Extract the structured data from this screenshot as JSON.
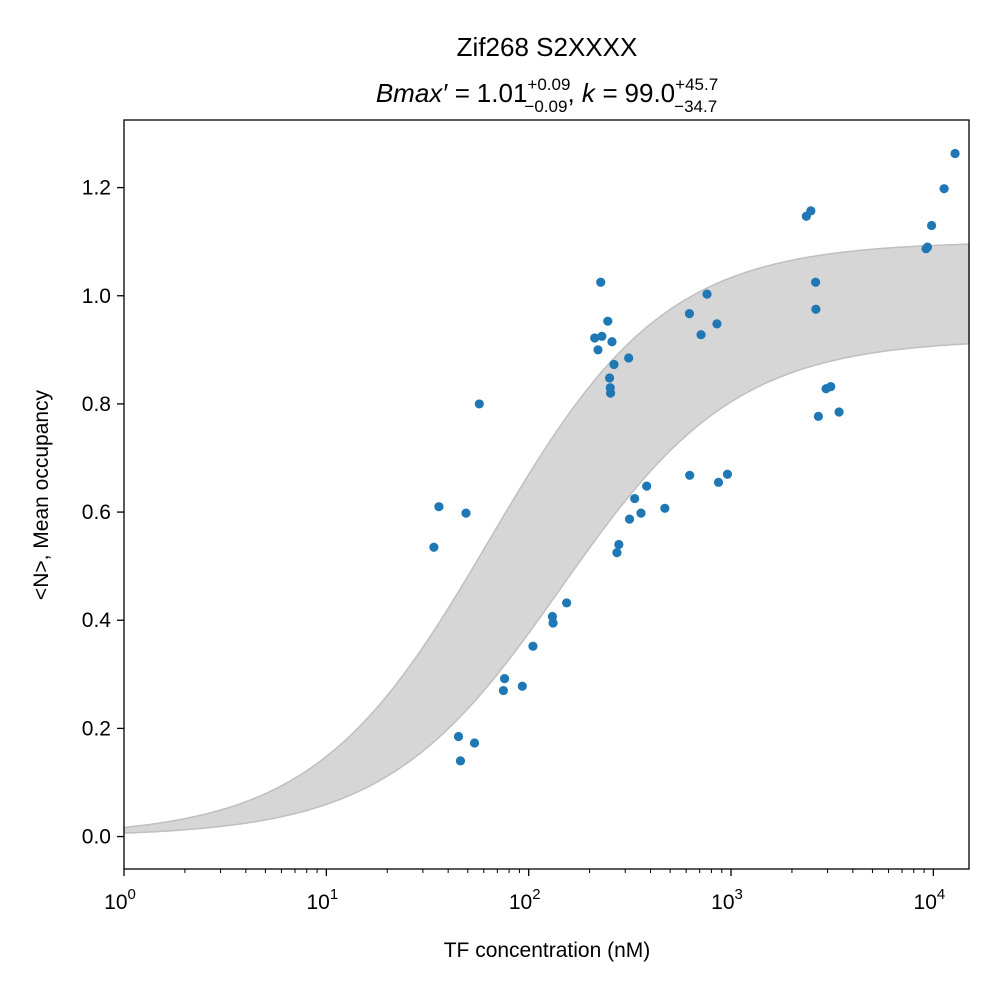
{
  "chart_data": {
    "type": "scatter",
    "title": "Zif268 S2XXXX",
    "subtitle": {
      "bmax_symbol": "Bmax′ = ",
      "bmax_value": "1.01",
      "bmax_up": "+0.09",
      "bmax_down": "−0.09",
      "separator": ", ",
      "k_symbol": "k = ",
      "k_value": "99.0",
      "k_up": "+45.7",
      "k_down": "−34.7"
    },
    "xlabel": "TF concentration (nM)",
    "ylabel": "<N>, Mean occupancy",
    "xscale": "log",
    "xlim": [
      1,
      15000
    ],
    "ylim": [
      -0.06,
      1.325
    ],
    "x_ticks": [
      {
        "value": 1,
        "base": "10",
        "exp": "0"
      },
      {
        "value": 10,
        "base": "10",
        "exp": "1"
      },
      {
        "value": 100,
        "base": "10",
        "exp": "2"
      },
      {
        "value": 1000,
        "base": "10",
        "exp": "3"
      },
      {
        "value": 10000,
        "base": "10",
        "exp": "4"
      }
    ],
    "y_ticks": [
      {
        "value": 0.0,
        "label": "0.0"
      },
      {
        "value": 0.2,
        "label": "0.2"
      },
      {
        "value": 0.4,
        "label": "0.4"
      },
      {
        "value": 0.6,
        "label": "0.6"
      },
      {
        "value": 0.8,
        "label": "0.8"
      },
      {
        "value": 1.0,
        "label": "1.0"
      },
      {
        "value": 1.2,
        "label": "1.2"
      }
    ],
    "grid": false,
    "band": {
      "bmax_low": 0.92,
      "bmax_high": 1.1,
      "k_low": 64.3,
      "k_high": 144.7,
      "color": "#d6d6d6",
      "edge_color": "#bfbfbf"
    },
    "point_color": "#1f77b4",
    "points": [
      {
        "x": 34,
        "y": 0.535
      },
      {
        "x": 36,
        "y": 0.61
      },
      {
        "x": 45,
        "y": 0.185
      },
      {
        "x": 46,
        "y": 0.14
      },
      {
        "x": 49,
        "y": 0.598
      },
      {
        "x": 54,
        "y": 0.173
      },
      {
        "x": 57,
        "y": 0.8
      },
      {
        "x": 75,
        "y": 0.27
      },
      {
        "x": 76,
        "y": 0.292
      },
      {
        "x": 93,
        "y": 0.278
      },
      {
        "x": 105,
        "y": 0.352
      },
      {
        "x": 131,
        "y": 0.407
      },
      {
        "x": 132,
        "y": 0.395
      },
      {
        "x": 154,
        "y": 0.432
      },
      {
        "x": 212,
        "y": 0.922
      },
      {
        "x": 220,
        "y": 0.9
      },
      {
        "x": 227,
        "y": 1.025
      },
      {
        "x": 230,
        "y": 0.925
      },
      {
        "x": 246,
        "y": 0.953
      },
      {
        "x": 251,
        "y": 0.848
      },
      {
        "x": 253,
        "y": 0.83
      },
      {
        "x": 254,
        "y": 0.82
      },
      {
        "x": 258,
        "y": 0.915
      },
      {
        "x": 264,
        "y": 0.873
      },
      {
        "x": 273,
        "y": 0.525
      },
      {
        "x": 279,
        "y": 0.54
      },
      {
        "x": 312,
        "y": 0.885
      },
      {
        "x": 315,
        "y": 0.587
      },
      {
        "x": 334,
        "y": 0.625
      },
      {
        "x": 359,
        "y": 0.598
      },
      {
        "x": 383,
        "y": 0.648
      },
      {
        "x": 471,
        "y": 0.607
      },
      {
        "x": 623,
        "y": 0.967
      },
      {
        "x": 625,
        "y": 0.668
      },
      {
        "x": 711,
        "y": 0.928
      },
      {
        "x": 761,
        "y": 1.003
      },
      {
        "x": 852,
        "y": 0.948
      },
      {
        "x": 867,
        "y": 0.655
      },
      {
        "x": 960,
        "y": 0.67
      },
      {
        "x": 2355,
        "y": 1.147
      },
      {
        "x": 2480,
        "y": 1.157
      },
      {
        "x": 2618,
        "y": 1.025
      },
      {
        "x": 2627,
        "y": 0.975
      },
      {
        "x": 2703,
        "y": 0.777
      },
      {
        "x": 2950,
        "y": 0.828
      },
      {
        "x": 3110,
        "y": 0.832
      },
      {
        "x": 3420,
        "y": 0.785
      },
      {
        "x": 9200,
        "y": 1.087
      },
      {
        "x": 9350,
        "y": 1.09
      },
      {
        "x": 9800,
        "y": 1.13
      },
      {
        "x": 11300,
        "y": 1.198
      },
      {
        "x": 12800,
        "y": 1.263
      }
    ]
  }
}
